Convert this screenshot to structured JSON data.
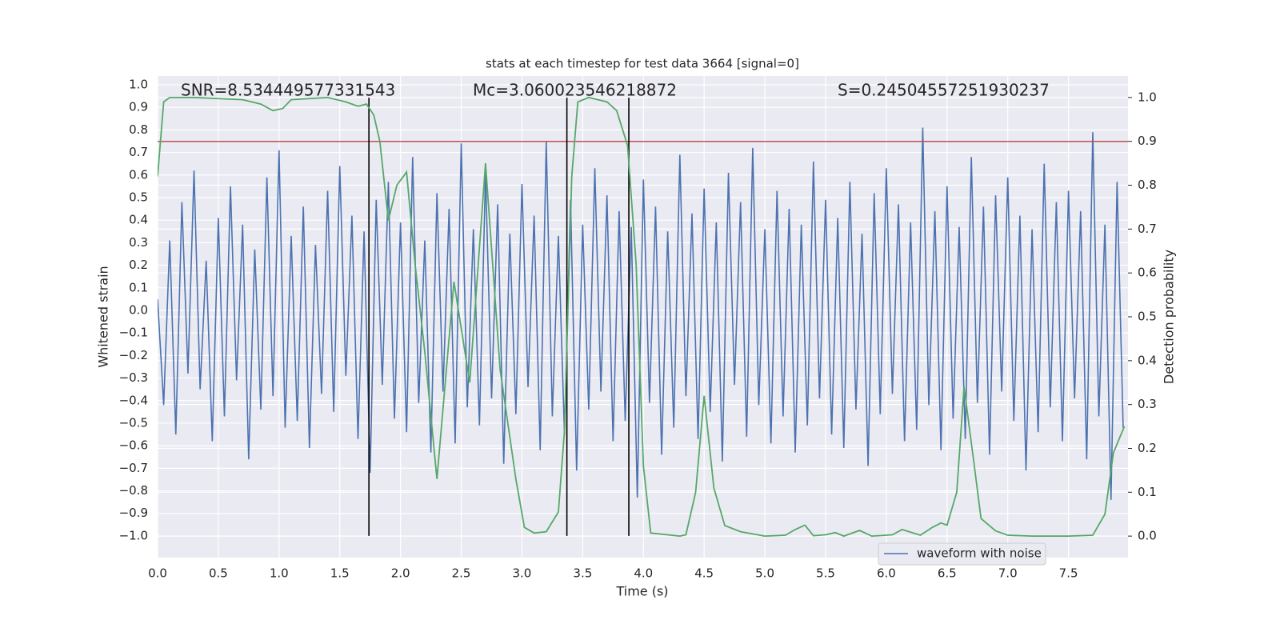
{
  "chart_data": {
    "type": "line",
    "title": "stats at each timestep for test data 3664 [signal=0]",
    "xlabel": "Time (s)",
    "ylabel": "Whitened strain",
    "y2label": "Detection probability",
    "annotations": [
      "SNR=8.534449577331543",
      "Mc=3.060023546218872",
      "S=0.24504557251930237"
    ],
    "xlim": [
      0,
      7.99
    ],
    "ylim": [
      -1.096,
      1.039
    ],
    "y2lim": [
      -0.049,
      1.049
    ],
    "grid": true,
    "legend": "lower right",
    "xticks": [
      {
        "value": 0,
        "label": "0.0"
      },
      {
        "value": 0.5,
        "label": "0.5"
      },
      {
        "value": 1,
        "label": "1.0"
      },
      {
        "value": 1.5,
        "label": "1.5"
      },
      {
        "value": 2,
        "label": "2.0"
      },
      {
        "value": 2.5,
        "label": "2.5"
      },
      {
        "value": 3,
        "label": "3.0"
      },
      {
        "value": 3.5,
        "label": "3.5"
      },
      {
        "value": 4,
        "label": "4.0"
      },
      {
        "value": 4.5,
        "label": "4.5"
      },
      {
        "value": 5,
        "label": "5.0"
      },
      {
        "value": 5.5,
        "label": "5.5"
      },
      {
        "value": 6,
        "label": "6.0"
      },
      {
        "value": 6.5,
        "label": "6.5"
      },
      {
        "value": 7,
        "label": "7.0"
      },
      {
        "value": 7.5,
        "label": "7.5"
      }
    ],
    "yticks": [
      {
        "value": -1,
        "label": "−1.0"
      },
      {
        "value": -0.9,
        "label": "−0.9"
      },
      {
        "value": -0.8,
        "label": "−0.8"
      },
      {
        "value": -0.7,
        "label": "−0.7"
      },
      {
        "value": -0.6,
        "label": "−0.6"
      },
      {
        "value": -0.5,
        "label": "−0.5"
      },
      {
        "value": -0.4,
        "label": "−0.4"
      },
      {
        "value": -0.3,
        "label": "−0.3"
      },
      {
        "value": -0.2,
        "label": "−0.2"
      },
      {
        "value": -0.1,
        "label": "−0.1"
      },
      {
        "value": 0,
        "label": "0.0"
      },
      {
        "value": 0.1,
        "label": "0.1"
      },
      {
        "value": 0.2,
        "label": "0.2"
      },
      {
        "value": 0.3,
        "label": "0.3"
      },
      {
        "value": 0.4,
        "label": "0.4"
      },
      {
        "value": 0.5,
        "label": "0.5"
      },
      {
        "value": 0.6,
        "label": "0.6"
      },
      {
        "value": 0.7,
        "label": "0.7"
      },
      {
        "value": 0.8,
        "label": "0.8"
      },
      {
        "value": 0.9,
        "label": "0.9"
      },
      {
        "value": 1,
        "label": "1.0"
      }
    ],
    "y2ticks": [
      {
        "value": 0,
        "label": "0.0"
      },
      {
        "value": 0.1,
        "label": "0.1"
      },
      {
        "value": 0.2,
        "label": "0.2"
      },
      {
        "value": 0.3,
        "label": "0.3"
      },
      {
        "value": 0.4,
        "label": "0.4"
      },
      {
        "value": 0.5,
        "label": "0.5"
      },
      {
        "value": 0.6,
        "label": "0.6"
      },
      {
        "value": 0.7,
        "label": "0.7"
      },
      {
        "value": 0.8,
        "label": "0.8"
      },
      {
        "value": 0.9,
        "label": "0.9"
      },
      {
        "value": 1,
        "label": "1.0"
      }
    ],
    "series": [
      {
        "name": "waveform with noise",
        "color": "#4c72b0",
        "x": [
          0,
          0.05,
          0.1,
          0.15,
          0.2,
          0.25,
          0.3,
          0.35,
          0.4,
          0.45,
          0.5,
          0.55,
          0.6,
          0.65,
          0.7,
          0.75,
          0.8,
          0.85,
          0.9,
          0.95,
          1,
          1.05,
          1.1,
          1.15,
          1.2,
          1.25,
          1.3,
          1.35,
          1.4,
          1.45,
          1.5,
          1.55,
          1.6,
          1.65,
          1.7,
          1.75,
          1.8,
          1.85,
          1.9,
          1.95,
          2,
          2.05,
          2.1,
          2.15,
          2.2,
          2.25,
          2.3,
          2.35,
          2.4,
          2.45,
          2.5,
          2.55,
          2.6,
          2.65,
          2.7,
          2.75,
          2.8,
          2.85,
          2.9,
          2.95,
          3,
          3.05,
          3.1,
          3.15,
          3.2,
          3.25,
          3.3,
          3.35,
          3.4,
          3.45,
          3.5,
          3.55,
          3.6,
          3.65,
          3.7,
          3.75,
          3.8,
          3.85,
          3.9,
          3.95,
          4,
          4.05,
          4.1,
          4.15,
          4.2,
          4.25,
          4.3,
          4.35,
          4.4,
          4.45,
          4.5,
          4.55,
          4.6,
          4.65,
          4.7,
          4.75,
          4.8,
          4.85,
          4.9,
          4.95,
          5,
          5.05,
          5.1,
          5.15,
          5.2,
          5.25,
          5.3,
          5.35,
          5.4,
          5.45,
          5.5,
          5.55,
          5.6,
          5.65,
          5.7,
          5.75,
          5.8,
          5.85,
          5.9,
          5.95,
          6,
          6.05,
          6.1,
          6.15,
          6.2,
          6.25,
          6.3,
          6.35,
          6.4,
          6.45,
          6.5,
          6.55,
          6.6,
          6.65,
          6.7,
          6.75,
          6.8,
          6.85,
          6.9,
          6.95,
          7,
          7.05,
          7.1,
          7.15,
          7.2,
          7.25,
          7.3,
          7.35,
          7.4,
          7.45,
          7.5,
          7.55,
          7.6,
          7.65,
          7.7,
          7.75,
          7.8,
          7.85,
          7.9,
          7.95
        ],
        "values": [
          0.05,
          -0.42,
          0.31,
          -0.55,
          0.48,
          -0.28,
          0.62,
          -0.35,
          0.22,
          -0.58,
          0.41,
          -0.47,
          0.55,
          -0.31,
          0.38,
          -0.66,
          0.27,
          -0.44,
          0.59,
          -0.38,
          0.71,
          -0.52,
          0.33,
          -0.49,
          0.46,
          -0.61,
          0.29,
          -0.37,
          0.53,
          -0.45,
          0.64,
          -0.29,
          0.42,
          -0.57,
          0.35,
          -0.72,
          0.49,
          -0.33,
          0.57,
          -0.48,
          0.39,
          -0.54,
          0.68,
          -0.41,
          0.31,
          -0.63,
          0.52,
          -0.36,
          0.45,
          -0.59,
          0.74,
          -0.43,
          0.36,
          -0.51,
          0.61,
          -0.39,
          0.47,
          -0.68,
          0.34,
          -0.46,
          0.56,
          -0.34,
          0.42,
          -0.62,
          0.75,
          -0.47,
          0.33,
          -0.55,
          0.49,
          -0.71,
          0.38,
          -0.44,
          0.63,
          -0.36,
          0.51,
          -0.58,
          0.44,
          -0.49,
          0.37,
          -0.83,
          0.58,
          -0.41,
          0.46,
          -0.64,
          0.35,
          -0.52,
          0.69,
          -0.38,
          0.43,
          -0.57,
          0.54,
          -0.45,
          0.39,
          -0.67,
          0.61,
          -0.33,
          0.48,
          -0.56,
          0.72,
          -0.42,
          0.36,
          -0.59,
          0.53,
          -0.47,
          0.45,
          -0.63,
          0.38,
          -0.51,
          0.66,
          -0.39,
          0.49,
          -0.55,
          0.41,
          -0.61,
          0.57,
          -0.44,
          0.34,
          -0.69,
          0.52,
          -0.46,
          0.63,
          -0.37,
          0.47,
          -0.58,
          0.39,
          -0.53,
          0.81,
          -0.42,
          0.44,
          -0.62,
          0.55,
          -0.48,
          0.37,
          -0.57,
          0.68,
          -0.41,
          0.46,
          -0.64,
          0.51,
          -0.36,
          0.59,
          -0.49,
          0.42,
          -0.71,
          0.36,
          -0.54,
          0.65,
          -0.43,
          0.48,
          -0.58,
          0.53,
          -0.39,
          0.44,
          -0.66,
          0.79,
          -0.47,
          0.38,
          -0.84,
          0.57,
          -0.52
        ]
      },
      {
        "color": "#55a868",
        "axis": "y2",
        "x": [
          0,
          0.05,
          0.1,
          0.3,
          0.7,
          0.85,
          0.95,
          1.03,
          1.1,
          1.4,
          1.55,
          1.65,
          1.72,
          1.78,
          1.83,
          1.9,
          1.97,
          2.05,
          2.12,
          2.2,
          2.3,
          2.44,
          2.57,
          2.7,
          2.82,
          2.95,
          3.02,
          3.1,
          3.2,
          3.3,
          3.35,
          3.41,
          3.46,
          3.55,
          3.7,
          3.78,
          3.87,
          3.94,
          4,
          4.06,
          4.3,
          4.35,
          4.43,
          4.5,
          4.58,
          4.67,
          4.8,
          5,
          5.17,
          5.25,
          5.33,
          5.4,
          5.5,
          5.58,
          5.65,
          5.78,
          5.88,
          6.05,
          6.13,
          6.28,
          6.38,
          6.45,
          6.5,
          6.58,
          6.64,
          6.72,
          6.78,
          6.9,
          7,
          7.2,
          7.5,
          7.7,
          7.8,
          7.87,
          7.96
        ],
        "values": [
          0.82,
          0.99,
          1,
          1,
          0.995,
          0.985,
          0.97,
          0.975,
          0.995,
          1,
          0.99,
          0.98,
          0.985,
          0.96,
          0.9,
          0.72,
          0.8,
          0.83,
          0.62,
          0.42,
          0.13,
          0.58,
          0.35,
          0.85,
          0.38,
          0.13,
          0.02,
          0.007,
          0.01,
          0.055,
          0.24,
          0.82,
          0.99,
          1,
          0.99,
          0.97,
          0.89,
          0.62,
          0.16,
          0.007,
          0,
          0.003,
          0.1,
          0.32,
          0.11,
          0.024,
          0.01,
          0,
          0.002,
          0.015,
          0.025,
          0.001,
          0.003,
          0.008,
          0,
          0.013,
          0,
          0.003,
          0.015,
          0.002,
          0.02,
          0.03,
          0.025,
          0.1,
          0.34,
          0.17,
          0.04,
          0.012,
          0.002,
          0,
          0,
          0.002,
          0.05,
          0.19,
          0.25
        ]
      }
    ],
    "hline": {
      "value": 0.9,
      "axis": "y2",
      "color": "#c44e52"
    },
    "vlines": {
      "values": [
        1.74,
        3.37,
        3.88
      ],
      "color": "#000000"
    }
  }
}
